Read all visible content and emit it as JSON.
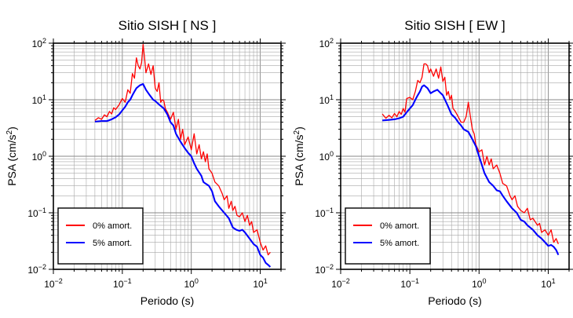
{
  "chart_data": [
    {
      "type": "line",
      "title": "Sitio SISH [ NS ]",
      "xlabel": "Periodo (s)",
      "ylabel_main": "PSA (cm/s",
      "ylabel_sup": "2",
      "ylabel_close": ")",
      "xscale": "log",
      "yscale": "log",
      "xlim": [
        0.01,
        20
      ],
      "ylim": [
        0.01,
        100
      ],
      "grid": true,
      "legend_position": "bottom-left",
      "x_ticks": [
        {
          "base": "10",
          "exp": "−2"
        },
        {
          "base": "10",
          "exp": "−1"
        },
        {
          "base": "10",
          "exp": "0"
        },
        {
          "base": "10",
          "exp": "1"
        }
      ],
      "y_ticks": [
        {
          "base": "10",
          "exp": "−2"
        },
        {
          "base": "10",
          "exp": "−1"
        },
        {
          "base": "10",
          "exp": "0"
        },
        {
          "base": "10",
          "exp": "1"
        },
        {
          "base": "10",
          "exp": "2"
        }
      ],
      "series": [
        {
          "name": "0% amort.",
          "color": "#ff0000",
          "points": [
            [
              0.04,
              4.3
            ],
            [
              0.045,
              4.8
            ],
            [
              0.05,
              4.5
            ],
            [
              0.055,
              5.4
            ],
            [
              0.06,
              5.0
            ],
            [
              0.065,
              6.2
            ],
            [
              0.07,
              5.6
            ],
            [
              0.075,
              7.2
            ],
            [
              0.08,
              6.7
            ],
            [
              0.09,
              8.2
            ],
            [
              0.1,
              10.5
            ],
            [
              0.11,
              9.0
            ],
            [
              0.12,
              15
            ],
            [
              0.13,
              13
            ],
            [
              0.14,
              29
            ],
            [
              0.15,
              24
            ],
            [
              0.16,
              55
            ],
            [
              0.17,
              40
            ],
            [
              0.18,
              35
            ],
            [
              0.19,
              45
            ],
            [
              0.2,
              95
            ],
            [
              0.21,
              55
            ],
            [
              0.22,
              30
            ],
            [
              0.24,
              43
            ],
            [
              0.26,
              28
            ],
            [
              0.28,
              40
            ],
            [
              0.3,
              16
            ],
            [
              0.32,
              14
            ],
            [
              0.34,
              20
            ],
            [
              0.36,
              9
            ],
            [
              0.38,
              10
            ],
            [
              0.4,
              9.5
            ],
            [
              0.42,
              7
            ],
            [
              0.45,
              6
            ],
            [
              0.5,
              4.5
            ],
            [
              0.55,
              6.0
            ],
            [
              0.6,
              3.0
            ],
            [
              0.65,
              4.5
            ],
            [
              0.7,
              2.0
            ],
            [
              0.75,
              3.0
            ],
            [
              0.8,
              1.6
            ],
            [
              0.9,
              2.2
            ],
            [
              1.0,
              1.3
            ],
            [
              1.1,
              2.5
            ],
            [
              1.2,
              1.1
            ],
            [
              1.3,
              1.6
            ],
            [
              1.4,
              0.9
            ],
            [
              1.5,
              1.2
            ],
            [
              1.6,
              0.8
            ],
            [
              1.7,
              1.1
            ],
            [
              1.8,
              0.6
            ],
            [
              2.0,
              0.5
            ],
            [
              2.2,
              0.35
            ],
            [
              2.5,
              0.3
            ],
            [
              2.8,
              0.22
            ],
            [
              3.0,
              0.17
            ],
            [
              3.3,
              0.2
            ],
            [
              3.5,
              0.12
            ],
            [
              3.8,
              0.16
            ],
            [
              4.0,
              0.11
            ],
            [
              4.3,
              0.13
            ],
            [
              4.6,
              0.09
            ],
            [
              5.0,
              0.085
            ],
            [
              5.5,
              0.1
            ],
            [
              6.0,
              0.07
            ],
            [
              6.5,
              0.09
            ],
            [
              7.0,
              0.06
            ],
            [
              7.5,
              0.07
            ],
            [
              8.0,
              0.045
            ],
            [
              9.0,
              0.05
            ],
            [
              10.0,
              0.03
            ],
            [
              11.0,
              0.022
            ],
            [
              12.0,
              0.026
            ],
            [
              13.0,
              0.018
            ],
            [
              14.0,
              0.02
            ]
          ]
        },
        {
          "name": "5% amort.",
          "color": "#0000ff",
          "points": [
            [
              0.04,
              4.1
            ],
            [
              0.05,
              4.2
            ],
            [
              0.06,
              4.2
            ],
            [
              0.07,
              4.5
            ],
            [
              0.08,
              4.9
            ],
            [
              0.09,
              5.5
            ],
            [
              0.1,
              6.5
            ],
            [
              0.11,
              7.5
            ],
            [
              0.12,
              9
            ],
            [
              0.13,
              10
            ],
            [
              0.14,
              12
            ],
            [
              0.15,
              14
            ],
            [
              0.16,
              16
            ],
            [
              0.18,
              18
            ],
            [
              0.2,
              19
            ],
            [
              0.22,
              15
            ],
            [
              0.25,
              12
            ],
            [
              0.28,
              10
            ],
            [
              0.3,
              9.5
            ],
            [
              0.35,
              8
            ],
            [
              0.4,
              7
            ],
            [
              0.45,
              5.5
            ],
            [
              0.5,
              4.0
            ],
            [
              0.55,
              3.5
            ],
            [
              0.6,
              2.5
            ],
            [
              0.7,
              1.8
            ],
            [
              0.8,
              1.4
            ],
            [
              0.9,
              1.15
            ],
            [
              1.0,
              1.0
            ],
            [
              1.1,
              0.75
            ],
            [
              1.2,
              0.6
            ],
            [
              1.4,
              0.45
            ],
            [
              1.5,
              0.35
            ],
            [
              1.6,
              0.33
            ],
            [
              1.8,
              0.3
            ],
            [
              2.0,
              0.24
            ],
            [
              2.2,
              0.16
            ],
            [
              2.5,
              0.13
            ],
            [
              3.0,
              0.1
            ],
            [
              3.5,
              0.08
            ],
            [
              4.0,
              0.055
            ],
            [
              4.5,
              0.05
            ],
            [
              5.0,
              0.048
            ],
            [
              5.5,
              0.05
            ],
            [
              6.0,
              0.045
            ],
            [
              7.0,
              0.035
            ],
            [
              8.0,
              0.028
            ],
            [
              9.0,
              0.025
            ],
            [
              10.0,
              0.018
            ],
            [
              11.0,
              0.016
            ],
            [
              12.0,
              0.013
            ],
            [
              13.0,
              0.012
            ],
            [
              14.0,
              0.011
            ]
          ]
        }
      ]
    },
    {
      "type": "line",
      "title": "Sitio SISH [ EW ]",
      "xlabel": "Periodo (s)",
      "ylabel_main": "PSA (cm/s",
      "ylabel_sup": "2",
      "ylabel_close": ")",
      "xscale": "log",
      "yscale": "log",
      "xlim": [
        0.01,
        20
      ],
      "ylim": [
        0.01,
        100
      ],
      "grid": true,
      "legend_position": "bottom-left",
      "x_ticks": [
        {
          "base": "10",
          "exp": "−2"
        },
        {
          "base": "10",
          "exp": "−1"
        },
        {
          "base": "10",
          "exp": "0"
        },
        {
          "base": "10",
          "exp": "1"
        }
      ],
      "y_ticks": [
        {
          "base": "10",
          "exp": "−2"
        },
        {
          "base": "10",
          "exp": "−1"
        },
        {
          "base": "10",
          "exp": "0"
        },
        {
          "base": "10",
          "exp": "1"
        },
        {
          "base": "10",
          "exp": "2"
        }
      ],
      "series": [
        {
          "name": "0% amort.",
          "color": "#ff0000",
          "points": [
            [
              0.04,
              5.6
            ],
            [
              0.045,
              4.7
            ],
            [
              0.05,
              5.3
            ],
            [
              0.055,
              4.8
            ],
            [
              0.06,
              5.7
            ],
            [
              0.065,
              5.0
            ],
            [
              0.07,
              6.2
            ],
            [
              0.075,
              5.5
            ],
            [
              0.08,
              7.0
            ],
            [
              0.085,
              6.0
            ],
            [
              0.09,
              10.5
            ],
            [
              0.1,
              11.0
            ],
            [
              0.11,
              10.0
            ],
            [
              0.12,
              14
            ],
            [
              0.13,
              22
            ],
            [
              0.14,
              20
            ],
            [
              0.15,
              25
            ],
            [
              0.16,
              43
            ],
            [
              0.17,
              43
            ],
            [
              0.18,
              40
            ],
            [
              0.19,
              30
            ],
            [
              0.2,
              35
            ],
            [
              0.22,
              26
            ],
            [
              0.24,
              35
            ],
            [
              0.26,
              24
            ],
            [
              0.28,
              38
            ],
            [
              0.3,
              21
            ],
            [
              0.32,
              25
            ],
            [
              0.34,
              12
            ],
            [
              0.36,
              14
            ],
            [
              0.38,
              10
            ],
            [
              0.4,
              12
            ],
            [
              0.42,
              7
            ],
            [
              0.45,
              6.3
            ],
            [
              0.5,
              5
            ],
            [
              0.55,
              4.0
            ],
            [
              0.6,
              4.0
            ],
            [
              0.65,
              5.0
            ],
            [
              0.7,
              9
            ],
            [
              0.75,
              5.0
            ],
            [
              0.8,
              3.0
            ],
            [
              0.85,
              2.5
            ],
            [
              0.9,
              1.6
            ],
            [
              1.0,
              1.2
            ],
            [
              1.1,
              1.3
            ],
            [
              1.2,
              0.7
            ],
            [
              1.3,
              1.0
            ],
            [
              1.4,
              0.7
            ],
            [
              1.5,
              0.9
            ],
            [
              1.6,
              0.6
            ],
            [
              1.8,
              0.7
            ],
            [
              2.0,
              0.5
            ],
            [
              2.2,
              0.33
            ],
            [
              2.5,
              0.3
            ],
            [
              2.8,
              0.2
            ],
            [
              3.0,
              0.17
            ],
            [
              3.3,
              0.2
            ],
            [
              3.6,
              0.13
            ],
            [
              4.0,
              0.11
            ],
            [
              4.5,
              0.1
            ],
            [
              5.0,
              0.12
            ],
            [
              5.5,
              0.075
            ],
            [
              6.0,
              0.08
            ],
            [
              7.0,
              0.06
            ],
            [
              7.5,
              0.065
            ],
            [
              8.0,
              0.045
            ],
            [
              9.0,
              0.05
            ],
            [
              10.0,
              0.04
            ],
            [
              11.0,
              0.05
            ],
            [
              12.0,
              0.03
            ],
            [
              13.0,
              0.035
            ],
            [
              14.0,
              0.028
            ]
          ]
        },
        {
          "name": "5% amort.",
          "color": "#0000ff",
          "points": [
            [
              0.04,
              4.3
            ],
            [
              0.05,
              4.4
            ],
            [
              0.06,
              4.5
            ],
            [
              0.07,
              4.7
            ],
            [
              0.08,
              5.0
            ],
            [
              0.09,
              6.0
            ],
            [
              0.1,
              7.0
            ],
            [
              0.11,
              8.0
            ],
            [
              0.12,
              10
            ],
            [
              0.13,
              12
            ],
            [
              0.14,
              14
            ],
            [
              0.15,
              17
            ],
            [
              0.16,
              18
            ],
            [
              0.18,
              16
            ],
            [
              0.2,
              13
            ],
            [
              0.22,
              14
            ],
            [
              0.25,
              15
            ],
            [
              0.28,
              13
            ],
            [
              0.3,
              12
            ],
            [
              0.35,
              8
            ],
            [
              0.4,
              5.5
            ],
            [
              0.45,
              4.8
            ],
            [
              0.5,
              4.0
            ],
            [
              0.55,
              3.5
            ],
            [
              0.6,
              3.0
            ],
            [
              0.7,
              2.7
            ],
            [
              0.8,
              2.0
            ],
            [
              0.9,
              1.5
            ],
            [
              1.0,
              1.0
            ],
            [
              1.1,
              0.7
            ],
            [
              1.2,
              0.5
            ],
            [
              1.4,
              0.35
            ],
            [
              1.6,
              0.3
            ],
            [
              1.8,
              0.25
            ],
            [
              2.0,
              0.24
            ],
            [
              2.2,
              0.2
            ],
            [
              2.5,
              0.16
            ],
            [
              3.0,
              0.12
            ],
            [
              3.5,
              0.1
            ],
            [
              4.0,
              0.075
            ],
            [
              4.5,
              0.07
            ],
            [
              5.0,
              0.06
            ],
            [
              6.0,
              0.05
            ],
            [
              7.0,
              0.04
            ],
            [
              8.0,
              0.035
            ],
            [
              9.0,
              0.03
            ],
            [
              10.0,
              0.026
            ],
            [
              11.0,
              0.027
            ],
            [
              12.0,
              0.025
            ],
            [
              13.0,
              0.022
            ],
            [
              14.0,
              0.018
            ]
          ]
        }
      ]
    }
  ]
}
